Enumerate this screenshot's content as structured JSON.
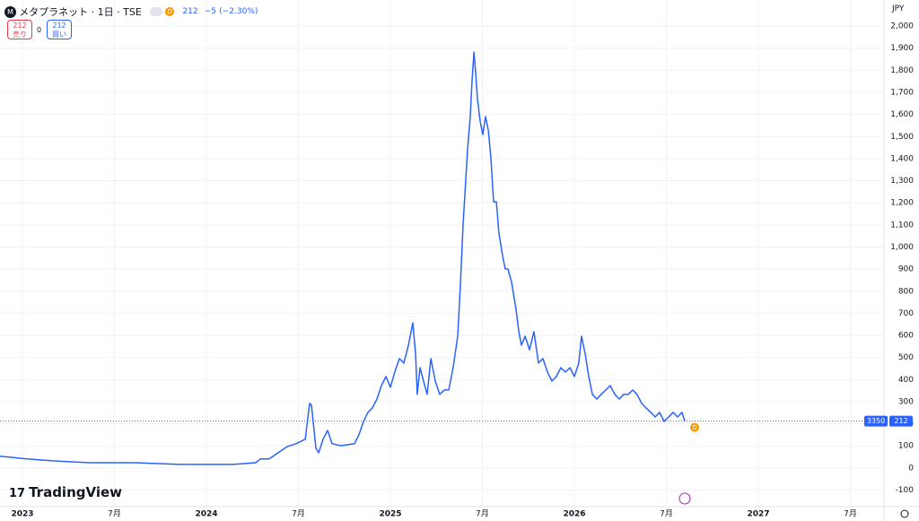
{
  "header": {
    "symbol": "メタプラネット · 1日 · TSE",
    "badge": "D",
    "last": 212,
    "change": "−5",
    "change_pct": "(−2.30%)",
    "sell_price": 212,
    "sell_label": "売り",
    "spread": 0,
    "buy_price": 212,
    "buy_label": "買い",
    "currency": "JPY",
    "brand": "TradingView"
  },
  "chart_data": {
    "type": "line",
    "color": "#2962ff",
    "x": [
      2022.878,
      2023.024,
      2023.171,
      2023.366,
      2023.61,
      2023.854,
      2024.01,
      2024.146,
      2024.268,
      2024.293,
      2024.341,
      2024.39,
      2024.439,
      2024.488,
      2024.537,
      2024.561,
      2024.571,
      2024.595,
      2024.61,
      2024.634,
      2024.659,
      2024.683,
      2024.732,
      2024.805,
      2024.829,
      2024.854,
      2024.878,
      2024.902,
      2024.927,
      2024.951,
      2024.976,
      2025.0,
      2025.024,
      2025.049,
      2025.073,
      2025.098,
      2025.122,
      2025.137,
      2025.146,
      2025.161,
      2025.18,
      2025.2,
      2025.22,
      2025.244,
      2025.268,
      2025.293,
      2025.317,
      2025.341,
      2025.366,
      2025.38,
      2025.395,
      2025.41,
      2025.42,
      2025.434,
      2025.444,
      2025.454,
      2025.463,
      2025.473,
      2025.488,
      2025.502,
      2025.517,
      2025.532,
      2025.546,
      2025.561,
      2025.576,
      2025.59,
      2025.61,
      2025.624,
      2025.639,
      2025.659,
      2025.683,
      2025.698,
      2025.712,
      2025.732,
      2025.756,
      2025.78,
      2025.805,
      2025.829,
      2025.854,
      2025.878,
      2025.902,
      2025.927,
      2025.951,
      2025.976,
      2026.0,
      2026.024,
      2026.039,
      2026.059,
      2026.078,
      2026.098,
      2026.122,
      2026.146,
      2026.171,
      2026.195,
      2026.22,
      2026.244,
      2026.268,
      2026.293,
      2026.317,
      2026.341,
      2026.366,
      2026.39,
      2026.415,
      2026.439,
      2026.463,
      2026.488,
      2026.512,
      2026.537,
      2026.561,
      2026.585,
      2026.6
    ],
    "values": [
      53,
      41,
      32,
      24,
      24,
      16,
      16,
      16,
      24,
      41,
      41,
      69,
      97,
      110,
      130,
      292,
      284,
      89,
      69,
      130,
      170,
      110,
      101,
      110,
      150,
      211,
      252,
      272,
      312,
      373,
      414,
      365,
      434,
      495,
      475,
      556,
      657,
      515,
      333,
      454,
      393,
      333,
      495,
      393,
      333,
      353,
      353,
      454,
      596,
      819,
      1103,
      1306,
      1448,
      1590,
      1753,
      1882,
      1793,
      1671,
      1570,
      1509,
      1590,
      1529,
      1408,
      1205,
      1205,
      1063,
      961,
      901,
      901,
      840,
      718,
      617,
      556,
      596,
      535,
      617,
      475,
      495,
      434,
      393,
      414,
      454,
      434,
      454,
      414,
      475,
      596,
      515,
      414,
      333,
      312,
      333,
      353,
      373,
      333,
      312,
      333,
      333,
      353,
      333,
      292,
      272,
      252,
      231,
      252,
      211,
      231,
      252,
      231,
      252,
      212
    ],
    "xlim": [
      2022.878,
      2027.683
    ],
    "ylim": [
      -175,
      2118
    ],
    "xticks": [
      2023,
      {
        "value": 2023.5,
        "label": "7月"
      },
      2024,
      {
        "value": 2024.5,
        "label": "7月"
      },
      2025,
      {
        "value": 2025.5,
        "label": "7月"
      },
      2026,
      {
        "value": 2026.5,
        "label": "7月"
      },
      2027,
      {
        "value": 2027.5,
        "label": "7月"
      }
    ],
    "yticks": [
      -100,
      0,
      100,
      200,
      300,
      400,
      500,
      600,
      700,
      800,
      900,
      {
        "value": 1000,
        "label": "1,000"
      },
      {
        "value": 1100,
        "label": "1,100"
      },
      {
        "value": 1200,
        "label": "1,200"
      },
      {
        "value": 1300,
        "label": "1,300"
      },
      {
        "value": 1400,
        "label": "1,400"
      },
      {
        "value": 1500,
        "label": "1,500"
      },
      {
        "value": 1600,
        "label": "1,600"
      },
      {
        "value": 1700,
        "label": "1,700"
      },
      {
        "value": 1800,
        "label": "1,800"
      },
      {
        "value": 1900,
        "label": "1,900"
      },
      {
        "value": 2000,
        "label": "2,000"
      }
    ],
    "grid": true,
    "price_line": {
      "value": 212,
      "countdown": "3350",
      "color": "#2962ff"
    },
    "marker": "D"
  }
}
